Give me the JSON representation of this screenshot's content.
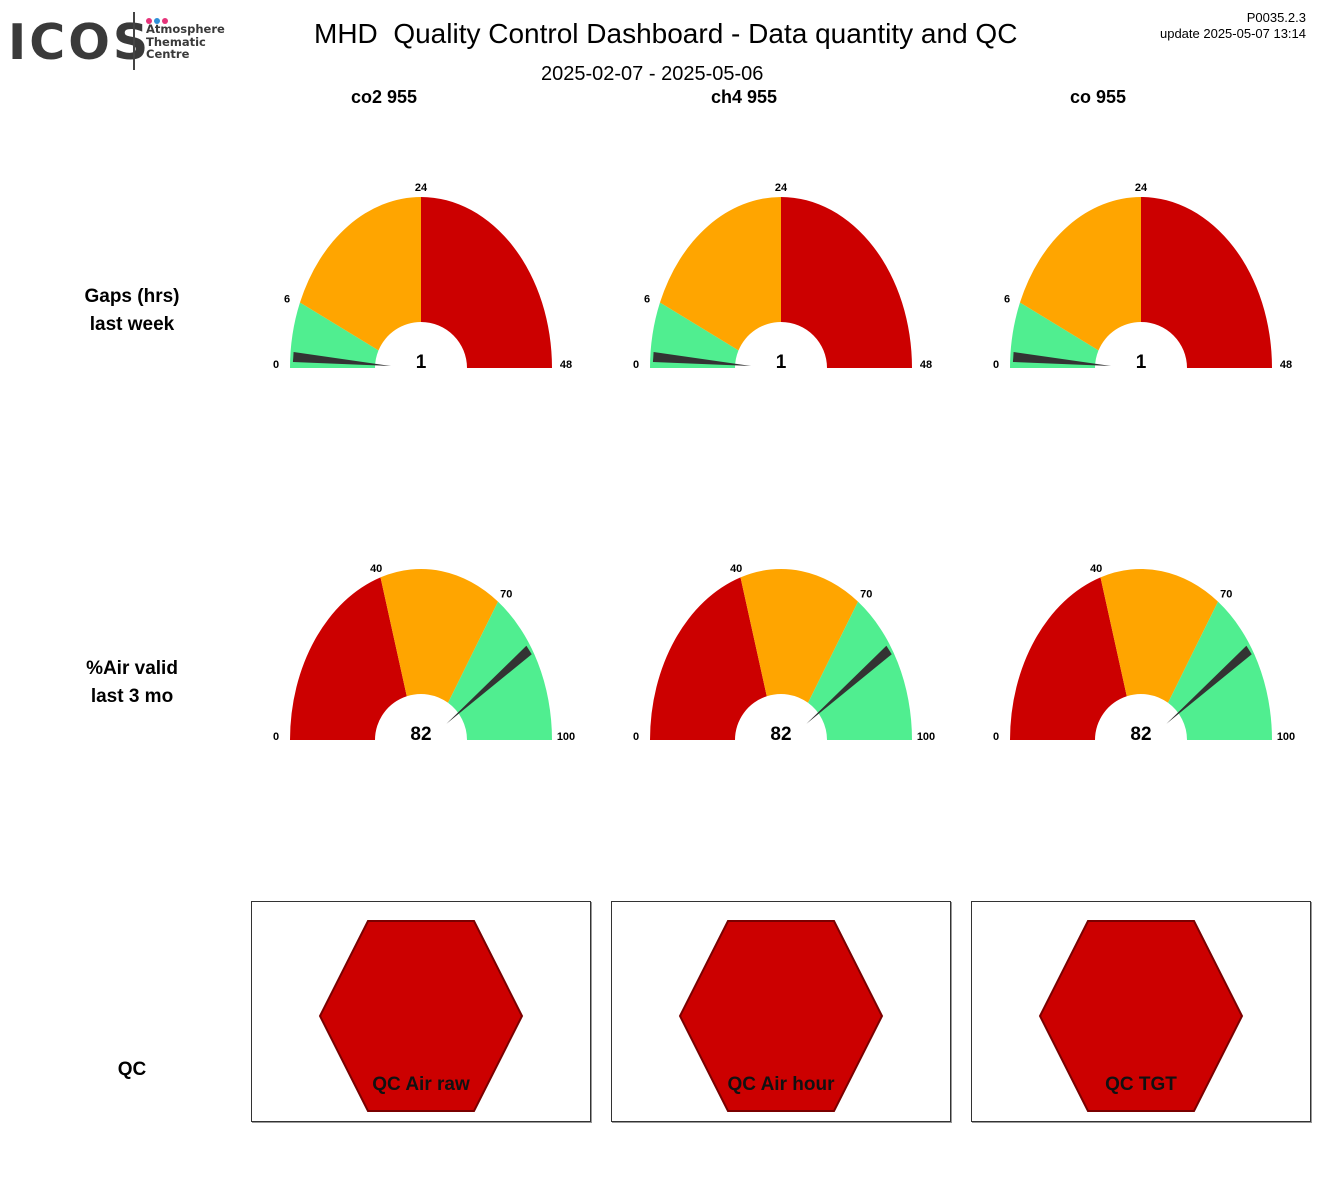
{
  "logo": {
    "text": "ICOS",
    "subtitle": "Atmosphere\nThematic\nCentre",
    "dot_colors": [
      "#e6337a",
      "#2f8fd8",
      "#e6337a"
    ]
  },
  "header": {
    "title": "MHD  Quality Control Dashboard - Data quantity and QC",
    "period": "2025-02-07 - 2025-05-06",
    "version": "P0035.2.3",
    "update": "update  2025-05-07 13:14"
  },
  "columns": [
    "co2 955",
    "ch4 955",
    "co 955"
  ],
  "rows": {
    "gaps": "Gaps (hrs)\nlast week",
    "air_valid": "%Air valid\nlast 3 mo",
    "qc": "QC"
  },
  "colors": {
    "red": "#cc0000",
    "orange": "#ffa500",
    "green": "#50ee90",
    "needle": "#333333"
  },
  "gauges": {
    "gaps": {
      "ticks": [
        0,
        6,
        24,
        48
      ],
      "bands": [
        {
          "from": 0,
          "to": 6,
          "color": "green"
        },
        {
          "from": 6,
          "to": 24,
          "color": "orange"
        },
        {
          "from": 24,
          "to": 48,
          "color": "red"
        }
      ],
      "values": [
        1,
        1,
        1
      ],
      "labels": [
        "1",
        "1",
        "1"
      ]
    },
    "air_valid": {
      "ticks": [
        0,
        40,
        70,
        100
      ],
      "bands": [
        {
          "from": 0,
          "to": 40,
          "color": "red"
        },
        {
          "from": 40,
          "to": 70,
          "color": "orange"
        },
        {
          "from": 70,
          "to": 100,
          "color": "green"
        }
      ],
      "values": [
        82,
        82,
        82
      ],
      "labels": [
        "82",
        "82",
        "82"
      ]
    }
  },
  "qc_panels": [
    {
      "label": "QC Air raw",
      "status_color": "red"
    },
    {
      "label": "QC Air hour",
      "status_color": "red"
    },
    {
      "label": "QC TGT",
      "status_color": "red"
    }
  ]
}
